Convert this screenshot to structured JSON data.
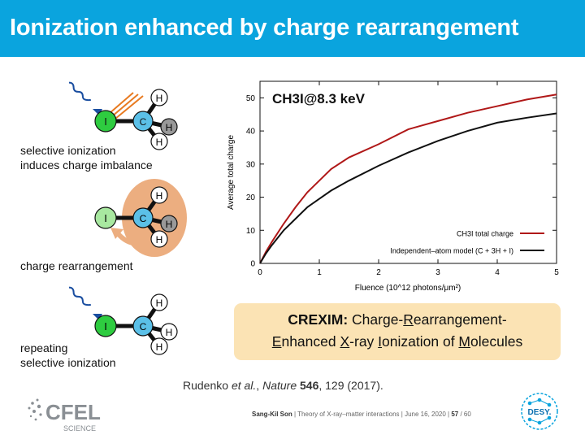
{
  "slide": {
    "title": "Ionization enhanced by charge rearrangement",
    "captions": {
      "step1_line1": "selective ionization",
      "step1_line2": "induces charge imbalance",
      "step2": "charge rearrangement",
      "step3_line1": "repeating",
      "step3_line2": "selective ionization"
    },
    "atoms": {
      "iodine": "I",
      "carbon": "C",
      "hydrogen": "H"
    },
    "crexim": {
      "label": "CREXIM:",
      "line1": [
        {
          "t": " Charge-",
          "u": false
        },
        {
          "t": "R",
          "u": true
        },
        {
          "t": "earrangement-",
          "u": false
        }
      ],
      "line2": [
        {
          "t": "E",
          "u": true
        },
        {
          "t": "nhanced ",
          "u": false
        },
        {
          "t": "X",
          "u": true
        },
        {
          "t": "-ray ",
          "u": false
        },
        {
          "t": "I",
          "u": true
        },
        {
          "t": "onization of ",
          "u": false
        },
        {
          "t": "M",
          "u": true
        },
        {
          "t": "olecules",
          "u": false
        }
      ]
    },
    "reference": {
      "authors": "Rudenko ",
      "etal": "et al.",
      "journal": "Nature",
      "volume": "546",
      "rest": ", 129 (2017)."
    },
    "footer": {
      "author": "Sang-Kil Son",
      "talk": "Theory of X-ray–matter interactions",
      "date": "June 16, 2020",
      "page": "57",
      "total": "/ 60"
    },
    "logos": {
      "cfel_text": "CFEL",
      "cfel_sub": "SCIENCE",
      "desy_text": "DESY."
    },
    "colors": {
      "title_bg": "#0aa4de",
      "iodine": "#2ecc40",
      "carbon": "#5bc0e8",
      "box": "#fbe3b4",
      "cloud": "#ecae80",
      "red_series": "#b01818"
    }
  },
  "chart_data": {
    "type": "line",
    "title": "CH3I@8.3 keV",
    "xlabel": "Fluence (10^12 photons/μm²)",
    "ylabel": "Average total charge",
    "xlim": [
      0,
      5
    ],
    "ylim": [
      0,
      55
    ],
    "xticks": [
      0,
      1,
      2,
      3,
      4,
      5
    ],
    "yticks": [
      0,
      10,
      20,
      30,
      40,
      50
    ],
    "legend_position": "bottom-right",
    "series": [
      {
        "name": "CH3I total charge",
        "color": "#b01818",
        "x": [
          0,
          0.1,
          0.2,
          0.4,
          0.6,
          0.8,
          1.0,
          1.2,
          1.5,
          2.0,
          2.5,
          3.0,
          3.5,
          4.0,
          4.5,
          5.0
        ],
        "y": [
          0,
          3.5,
          6.5,
          12,
          17,
          21.5,
          25,
          28.5,
          32,
          36,
          40.5,
          43,
          45.5,
          47.5,
          49.5,
          51
        ]
      },
      {
        "name": "Independent–atom model (C + 3H + I)",
        "color": "#111111",
        "x": [
          0,
          0.1,
          0.2,
          0.4,
          0.6,
          0.8,
          1.0,
          1.2,
          1.5,
          2.0,
          2.5,
          3.0,
          3.5,
          4.0,
          4.5,
          5.0
        ],
        "y": [
          0,
          3,
          5.5,
          10,
          13.5,
          17,
          19.5,
          22,
          25,
          29.5,
          33.5,
          37,
          40,
          42.5,
          44,
          45.3
        ]
      }
    ]
  }
}
